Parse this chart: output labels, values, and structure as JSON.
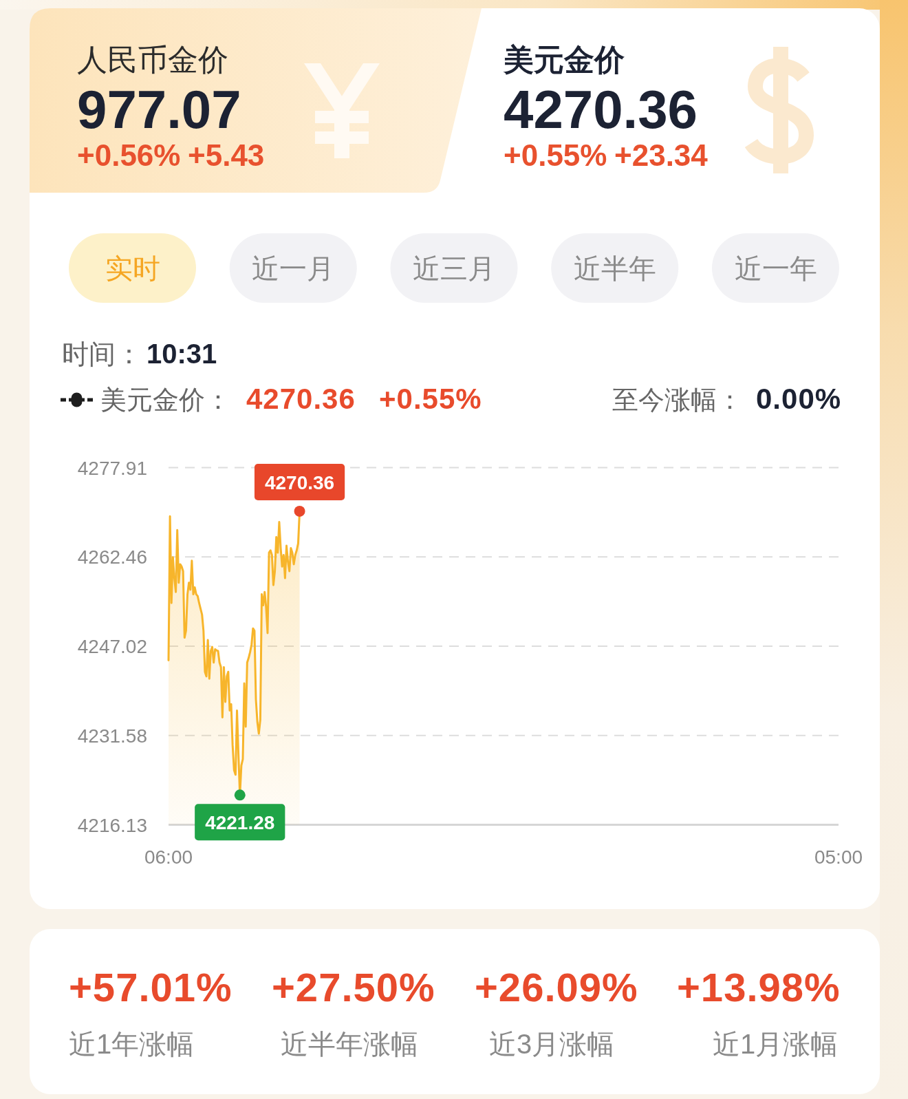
{
  "chart_data": [
    {
      "type": "other",
      "annotations": [
        "人民币金价",
        "977.07",
        "+0.56%",
        "+5.43",
        "美元金价",
        "4270.36",
        "+0.55%",
        "+23.34"
      ]
    },
    {
      "type": "area",
      "annotations": [
        "实时",
        "近一月",
        "近三月",
        "近半年",
        "近一年",
        "时间：",
        "10:31",
        "4270.36",
        "+0.55%",
        "至今涨幅：",
        "0.00%",
        {
          "text": "4270.36",
          "y": 4270.36
        },
        {
          "text": "4221.28",
          "y": 4221.28
        }
      ],
      "categories": [
        "06:00",
        null,
        null,
        null,
        null,
        null,
        null,
        null,
        null,
        null,
        null,
        null,
        null,
        null,
        null,
        null,
        null,
        null,
        null,
        null,
        null,
        null,
        null,
        null,
        null,
        null,
        null,
        null,
        null,
        null,
        null,
        null,
        null,
        null,
        null,
        null,
        null,
        null,
        null,
        null,
        null,
        null,
        null,
        null,
        null,
        null,
        null,
        null,
        null,
        null,
        null,
        null,
        null,
        null,
        null,
        null,
        null,
        null,
        null,
        null,
        null,
        null,
        null,
        null,
        null,
        null,
        null,
        null,
        null,
        null,
        null,
        null,
        null,
        null,
        null,
        null,
        null,
        null,
        null,
        null,
        null,
        null,
        null,
        null,
        null,
        null,
        null,
        null,
        null,
        null,
        null,
        null,
        null,
        null,
        null,
        null,
        null,
        null,
        null,
        null,
        null,
        null,
        null,
        null,
        null,
        null,
        null,
        null,
        null,
        null,
        null,
        null,
        null,
        null,
        null,
        null,
        null,
        null,
        null,
        null,
        null,
        null,
        null,
        null,
        null,
        null,
        null,
        null,
        null,
        null,
        null,
        null,
        null,
        null,
        null,
        null,
        null,
        null,
        null,
        null,
        null,
        null,
        null,
        null,
        null,
        null,
        null,
        null,
        null,
        null,
        null,
        null,
        null,
        null,
        null,
        null,
        null,
        null,
        null,
        null,
        null,
        null,
        null,
        null,
        null,
        null,
        null,
        null,
        null,
        null,
        null,
        null,
        null,
        null,
        null,
        null,
        null,
        null,
        null,
        null,
        null,
        null,
        null,
        null,
        null,
        null,
        null,
        null,
        null,
        null,
        null,
        null,
        null,
        null,
        null,
        null,
        null,
        null,
        null,
        null,
        null,
        null,
        null,
        null,
        null,
        null,
        null,
        null,
        null,
        null,
        null,
        null,
        null,
        null,
        null,
        null,
        null,
        null,
        null,
        null,
        null,
        null,
        null,
        null,
        null,
        null,
        null,
        null,
        null,
        null,
        null,
        null,
        null,
        null,
        null,
        null,
        null,
        null,
        null,
        null,
        null,
        null,
        null,
        null,
        null,
        null,
        null,
        null,
        null,
        null,
        null,
        null,
        null,
        null,
        null,
        null,
        null,
        null,
        null,
        null,
        null,
        null,
        null,
        null,
        null,
        null,
        null,
        null,
        null,
        null,
        null,
        null,
        null,
        null,
        null,
        null,
        null,
        null,
        null,
        null,
        null,
        null,
        null,
        null,
        null,
        null,
        null,
        null,
        null,
        null,
        null,
        null,
        null,
        null,
        null,
        null,
        null,
        null,
        null,
        null,
        null,
        null,
        null,
        null,
        null,
        null,
        null,
        null,
        null,
        null,
        null,
        null,
        null,
        null,
        null,
        null,
        null,
        null,
        null,
        null,
        null,
        null,
        null,
        null,
        null,
        null,
        null,
        null,
        null,
        null,
        null,
        null,
        null,
        null,
        null,
        null,
        null,
        null,
        null,
        null,
        null,
        null,
        null,
        null,
        null,
        null,
        null,
        null,
        null,
        null,
        null,
        null,
        null,
        null,
        null,
        null,
        null,
        null,
        null,
        null,
        null,
        null,
        null,
        null,
        null,
        null,
        null,
        null,
        null,
        null,
        null,
        null,
        null,
        null,
        null,
        null,
        null,
        null,
        null,
        null,
        null,
        null,
        null,
        null,
        null,
        null,
        null,
        null,
        null,
        null,
        null,
        null,
        null,
        null,
        null,
        null,
        null,
        null,
        null,
        null,
        null,
        null,
        null,
        null,
        null,
        null,
        null,
        null,
        null,
        null,
        null,
        null,
        null,
        null,
        null,
        null,
        null,
        null,
        null,
        null,
        null,
        null,
        null,
        null,
        null,
        null,
        null,
        null,
        null,
        null,
        null,
        null,
        null,
        null,
        null,
        null,
        null,
        null,
        null,
        null,
        null,
        null,
        null,
        null,
        null,
        null,
        null,
        null,
        null,
        null,
        null,
        null,
        null,
        null,
        null,
        null,
        null,
        null,
        null,
        null,
        "05:00"
      ],
      "series": [
        {
          "name": "美元金价：",
          "color": "#f7b52b",
          "values": [
            4244.6,
            4269.5,
            4254.5,
            4262.4,
            4258.8,
            4256.4,
            4267.1,
            4258.0,
            4261.2,
            4260.8,
            4260.0,
            4248.5,
            4249.7,
            4256.0,
            4258.0,
            4256.8,
            4261.8,
            4256.0,
            4257.2,
            4256.0,
            4255.7,
            4254.5,
            4253.5,
            4252.5,
            4249.7,
            4242.6,
            4241.8,
            4248.1,
            4241.4,
            4246.2,
            4246.9,
            4244.2,
            4246.5,
            4246.3,
            4246.2,
            4244.2,
            4243.4,
            4234.7,
            4243.4,
            4237.4,
            4241.8,
            4242.6,
            4235.9,
            4237.0,
            4229.9,
            4225.6,
            4224.8,
            4235.9,
            4228.3,
            4221.28,
            4226.4,
            4227.5,
            4240.6,
            4233.1,
            4244.2,
            4245.0,
            4246.0,
            4247.3,
            4250.1,
            4249.7,
            4237.8,
            4233.9,
            4231.9,
            4234.3,
            4256.0,
            4254.1,
            4256.4,
            4253.7,
            4249.3,
            4263.2,
            4263.6,
            4262.8,
            4257.6,
            4260.0,
            4265.9,
            4263.2,
            4268.5,
            4264.0,
            4260.8,
            4262.8,
            4258.8,
            4264.4,
            4261.6,
            4260.0,
            4264.0,
            4263.2,
            4261.2,
            4262.8,
            4263.6,
            4264.8,
            4270.36,
            null,
            null,
            null,
            null,
            null,
            null,
            null,
            null,
            null,
            null,
            null,
            null,
            null,
            null,
            null,
            null,
            null,
            null,
            null,
            null,
            null,
            null,
            null,
            null,
            null,
            null,
            null,
            null,
            null,
            null,
            null,
            null,
            null,
            null,
            null,
            null,
            null,
            null,
            null,
            null,
            null,
            null,
            null,
            null,
            null,
            null,
            null,
            null,
            null,
            null,
            null,
            null,
            null,
            null,
            null,
            null,
            null,
            null,
            null,
            null,
            null,
            null,
            null,
            null,
            null,
            null,
            null,
            null,
            null,
            null,
            null,
            null,
            null,
            null,
            null,
            null,
            null,
            null,
            null,
            null,
            null,
            null,
            null,
            null,
            null,
            null,
            null,
            null,
            null,
            null,
            null,
            null,
            null,
            null,
            null,
            null,
            null,
            null,
            null,
            null,
            null,
            null,
            null,
            null,
            null,
            null,
            null,
            null,
            null,
            null,
            null,
            null,
            null,
            null,
            null,
            null,
            null,
            null,
            null,
            null,
            null,
            null,
            null,
            null,
            null,
            null,
            null,
            null,
            null,
            null,
            null,
            null,
            null,
            null,
            null,
            null,
            null,
            null,
            null,
            null,
            null,
            null,
            null,
            null,
            null,
            null,
            null,
            null,
            null,
            null,
            null,
            null,
            null,
            null,
            null,
            null,
            null,
            null,
            null,
            null,
            null,
            null,
            null,
            null,
            null,
            null,
            null,
            null,
            null,
            null,
            null,
            null,
            null,
            null,
            null,
            null,
            null,
            null,
            null,
            null,
            null,
            null,
            null,
            null,
            null,
            null,
            null,
            null,
            null,
            null,
            null,
            null,
            null,
            null,
            null,
            null,
            null,
            null,
            null,
            null,
            null,
            null,
            null,
            null,
            null,
            null,
            null,
            null,
            null,
            null,
            null,
            null,
            null,
            null,
            null,
            null,
            null,
            null,
            null,
            null,
            null,
            null,
            null,
            null,
            null,
            null,
            null,
            null,
            null,
            null,
            null,
            null,
            null,
            null,
            null,
            null,
            null,
            null,
            null,
            null,
            null,
            null,
            null,
            null,
            null,
            null,
            null,
            null,
            null,
            null,
            null,
            null,
            null,
            null,
            null,
            null,
            null,
            null,
            null,
            null,
            null,
            null,
            null,
            null,
            null,
            null,
            null,
            null,
            null,
            null,
            null,
            null,
            null,
            null,
            null,
            null,
            null,
            null,
            null,
            null,
            null,
            null,
            null,
            null,
            null,
            null,
            null,
            null,
            null,
            null,
            null,
            null,
            null,
            null,
            null,
            null,
            null,
            null,
            null,
            null,
            null,
            null,
            null,
            null,
            null,
            null,
            null,
            null,
            null,
            null,
            null,
            null,
            null,
            null,
            null,
            null,
            null,
            null,
            null,
            null,
            null,
            null,
            null,
            null,
            null,
            null,
            null,
            null,
            null,
            null,
            null,
            null,
            null,
            null,
            null,
            null,
            null,
            null,
            null,
            null,
            null,
            null,
            null,
            null,
            null,
            null,
            null,
            null,
            null,
            null,
            null,
            null,
            null,
            null,
            null,
            null,
            null,
            null,
            null,
            null,
            null,
            null,
            null,
            null,
            null,
            null,
            null,
            null,
            null,
            null
          ]
        }
      ],
      "ylim": [
        4216.13,
        4277.91
      ],
      "yticks": [
        4216.13,
        4231.58,
        4247.02,
        4262.46,
        4277.91
      ],
      "grid": "y",
      "legend": "top left"
    },
    {
      "type": "other",
      "annotations": [
        "+57.01%",
        "+27.50%",
        "+26.09%",
        "+13.98%",
        "近1年涨幅",
        "近半年涨幅",
        "近3月涨幅",
        "近1月涨幅"
      ]
    }
  ]
}
